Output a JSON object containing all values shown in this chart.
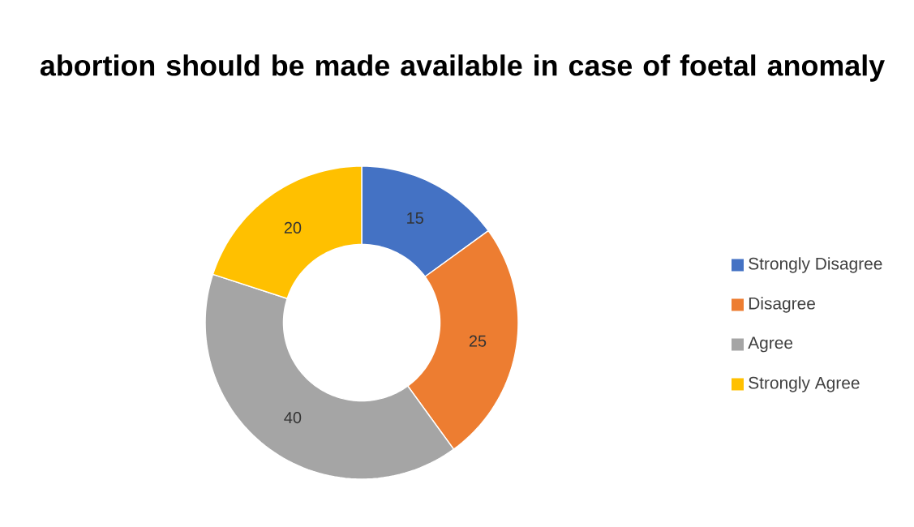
{
  "chart_data": {
    "type": "donut",
    "title": "abortion should be made available in case of foetal anomaly",
    "categories": [
      "Strongly Disagree",
      "Disagree",
      "Agree",
      "Strongly Agree"
    ],
    "values": [
      15,
      25,
      40,
      20
    ],
    "colors": [
      "#4472c4",
      "#ed7d31",
      "#a5a5a5",
      "#ffc000"
    ],
    "data_labels": true,
    "legend": "right"
  }
}
